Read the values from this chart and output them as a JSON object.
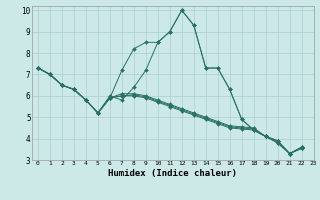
{
  "xlabel": "Humidex (Indice chaleur)",
  "xlim": [
    -0.5,
    23
  ],
  "ylim": [
    3,
    10.2
  ],
  "yticks": [
    3,
    4,
    5,
    6,
    7,
    8,
    9,
    10
  ],
  "xticks": [
    0,
    1,
    2,
    3,
    4,
    5,
    6,
    7,
    8,
    9,
    10,
    11,
    12,
    13,
    14,
    15,
    16,
    17,
    18,
    19,
    20,
    21,
    22,
    23
  ],
  "bg_color": "#cce9e8",
  "grid_color": "#aacfce",
  "line_color": "#2a7068",
  "series": [
    [
      7.3,
      7.0,
      6.5,
      6.3,
      5.8,
      5.2,
      5.9,
      7.2,
      8.2,
      8.5,
      8.5,
      9.0,
      10.0,
      9.3,
      7.3,
      7.3,
      6.3,
      4.9,
      4.4,
      4.1,
      3.8,
      3.3,
      3.6
    ],
    [
      7.3,
      7.0,
      6.5,
      6.3,
      5.8,
      5.2,
      6.0,
      5.8,
      6.4,
      7.2,
      8.5,
      9.0,
      10.0,
      9.3,
      7.3,
      7.3,
      6.3,
      4.9,
      4.4,
      4.1,
      3.8,
      3.3,
      3.6
    ],
    [
      7.3,
      7.0,
      6.5,
      6.3,
      5.8,
      5.2,
      5.9,
      6.0,
      6.0,
      5.9,
      5.7,
      5.5,
      5.3,
      5.1,
      4.9,
      4.7,
      4.5,
      4.45,
      4.4,
      4.1,
      3.9,
      3.3,
      3.55
    ],
    [
      7.3,
      7.0,
      6.5,
      6.3,
      5.8,
      5.2,
      5.9,
      6.0,
      6.05,
      5.95,
      5.75,
      5.55,
      5.35,
      5.15,
      4.95,
      4.75,
      4.55,
      4.5,
      4.45,
      4.1,
      3.9,
      3.3,
      3.55
    ],
    [
      7.3,
      7.0,
      6.5,
      6.3,
      5.8,
      5.2,
      5.9,
      6.1,
      6.1,
      6.0,
      5.8,
      5.6,
      5.4,
      5.2,
      5.0,
      4.8,
      4.6,
      4.55,
      4.5,
      4.1,
      3.9,
      3.3,
      3.55
    ]
  ]
}
